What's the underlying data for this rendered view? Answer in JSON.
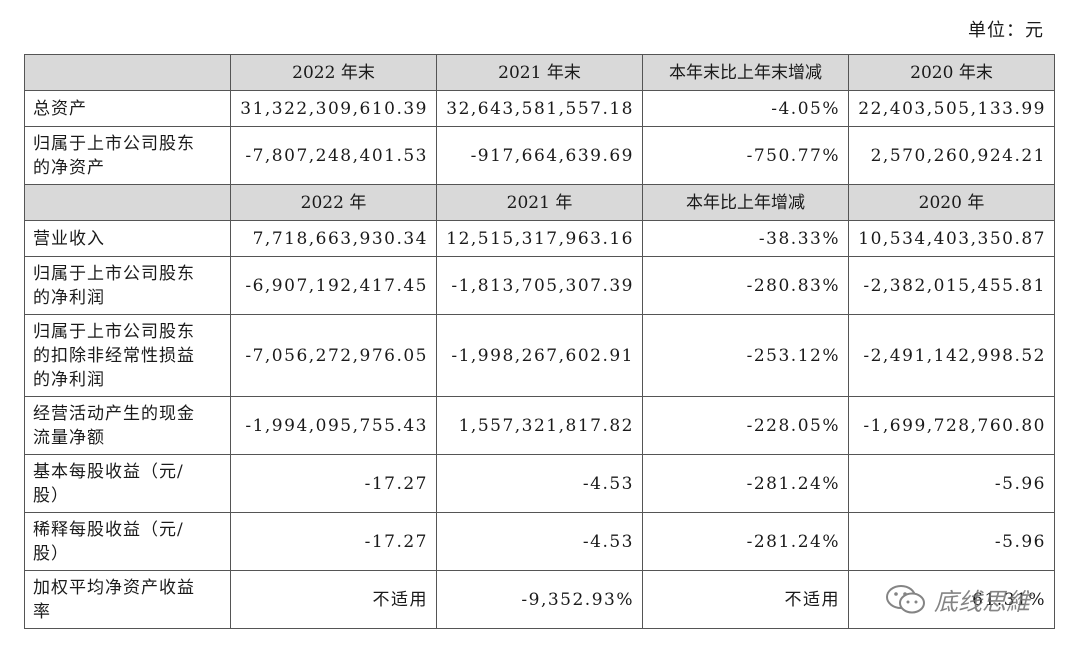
{
  "unit_label": "单位：元",
  "header_row_1": {
    "col1": "2022 年末",
    "col2": "2021 年末",
    "col3": "本年末比上年末增减",
    "col4": "2020 年末"
  },
  "header_row_2": {
    "col1": "2022 年",
    "col2": "2021 年",
    "col3": "本年比上年增减",
    "col4": "2020 年"
  },
  "rows_section_1": [
    {
      "label_lines": [
        "总资产"
      ],
      "v2022": "31,322,309,610.39",
      "v2021": "32,643,581,557.18",
      "change": "-4.05%",
      "v2020": "22,403,505,133.99"
    },
    {
      "label_lines": [
        "归属于上市公司股东",
        "的净资产"
      ],
      "v2022": "-7,807,248,401.53",
      "v2021": "-917,664,639.69",
      "change": "-750.77%",
      "v2020": "2,570,260,924.21"
    }
  ],
  "rows_section_2": [
    {
      "label_lines": [
        "营业收入"
      ],
      "v2022": "7,718,663,930.34",
      "v2021": "12,515,317,963.16",
      "change": "-38.33%",
      "v2020": "10,534,403,350.87"
    },
    {
      "label_lines": [
        "归属于上市公司股东",
        "的净利润"
      ],
      "v2022": "-6,907,192,417.45",
      "v2021": "-1,813,705,307.39",
      "change": "-280.83%",
      "v2020": "-2,382,015,455.81"
    },
    {
      "label_lines": [
        "归属于上市公司股东",
        "的扣除非经常性损益",
        "的净利润"
      ],
      "v2022": "-7,056,272,976.05",
      "v2021": "-1,998,267,602.91",
      "change": "-253.12%",
      "v2020": "-2,491,142,998.52"
    },
    {
      "label_lines": [
        "经营活动产生的现金",
        "流量净额"
      ],
      "v2022": "-1,994,095,755.43",
      "v2021": "1,557,321,817.82",
      "change": "-228.05%",
      "v2020": "-1,699,728,760.80"
    },
    {
      "label_lines": [
        "基本每股收益（元/",
        "股）"
      ],
      "v2022": "-17.27",
      "v2021": "-4.53",
      "change": "-281.24%",
      "v2020": "-5.96"
    },
    {
      "label_lines": [
        "稀释每股收益（元/",
        "股）"
      ],
      "v2022": "-17.27",
      "v2021": "-4.53",
      "change": "-281.24%",
      "v2020": "-5.96"
    },
    {
      "label_lines": [
        "加权平均净资产收益",
        "率"
      ],
      "v2022": "不适用",
      "v2021": "-9,352.93%",
      "change": "不适用",
      "v2020": "61.31%"
    }
  ],
  "watermark": {
    "text": "底线思維",
    "icon": "wechat-icon"
  }
}
